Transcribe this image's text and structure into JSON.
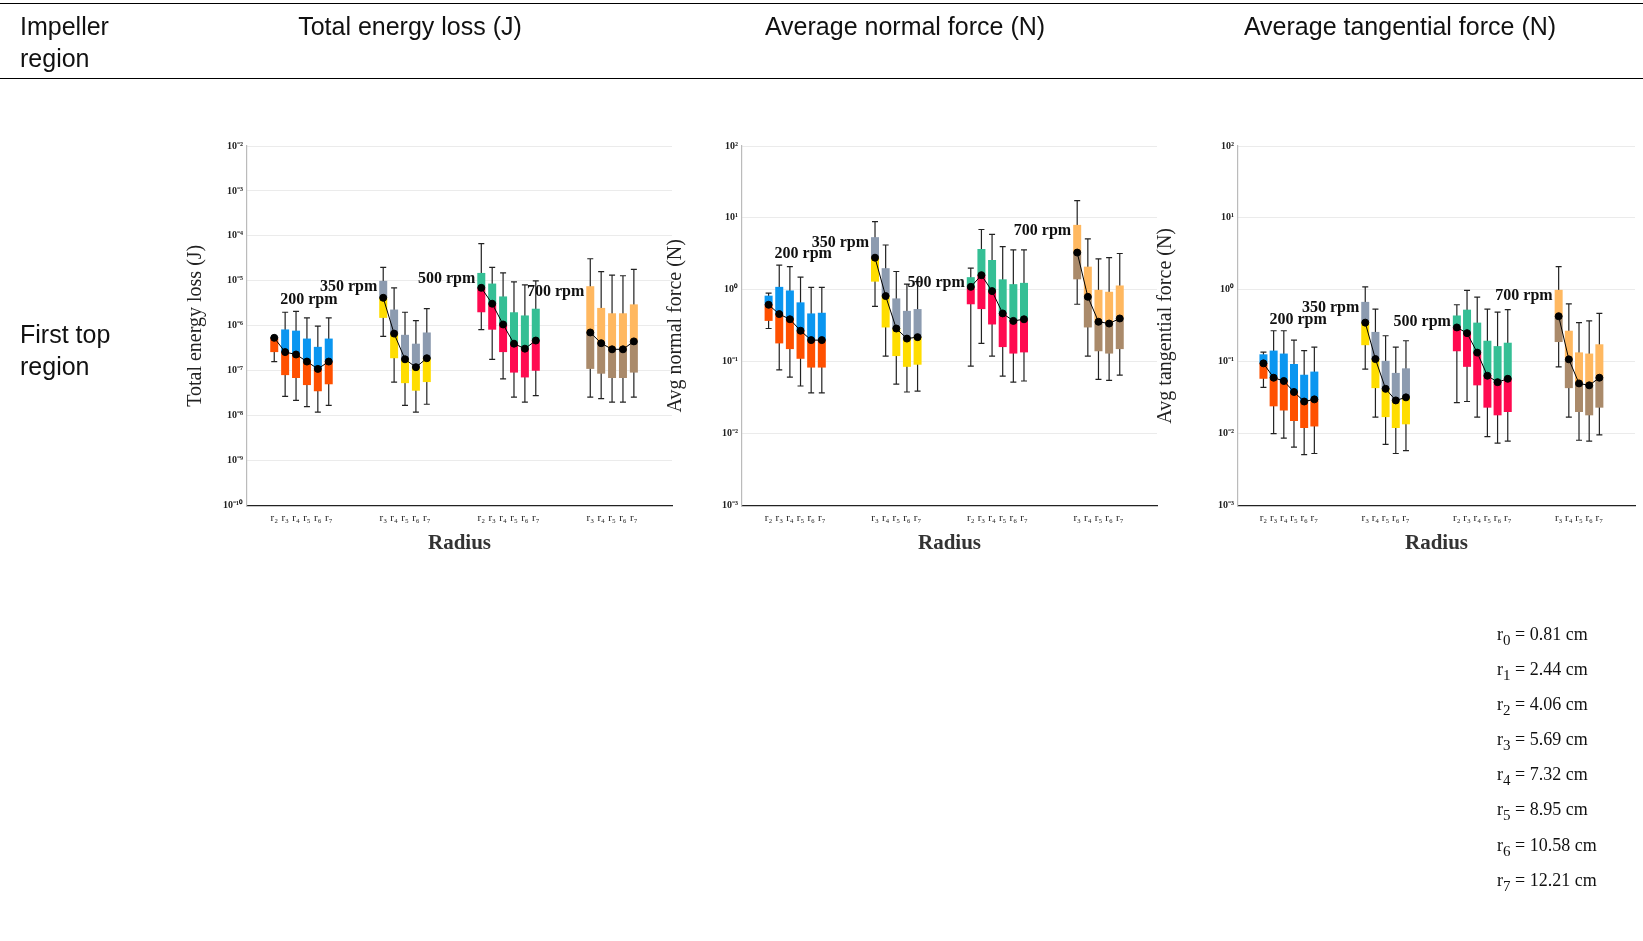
{
  "chart_data": [
    {
      "type": "box",
      "title": "Total energy loss (J)",
      "xlabel": "Radius",
      "ylabel": "Total energy loss (J)",
      "log": "y",
      "grid": "y",
      "legend": false,
      "marker": "circle",
      "line_style": "solid",
      "annotations": [
        "Impeller region",
        "First top region"
      ],
      "categories": [
        null,
        null,
        "r₂",
        "r₃",
        "r₄",
        "r₅",
        "r₆",
        "r₇",
        null,
        null,
        null,
        null,
        "r₃",
        "r₄",
        "r₅",
        "r₆",
        "r₇",
        null,
        null,
        null,
        null,
        "r₂",
        "r₃",
        "r₄",
        "r₅",
        "r₆",
        "r₇",
        null,
        null,
        null,
        null,
        "r₃",
        "r₄",
        "r₅",
        "r₆",
        "r₇",
        null,
        null,
        null
      ],
      "ylim": [
        1e-10,
        0.01
      ],
      "yticks": [
        {
          "value": 1e-10,
          "label": "10⁻¹⁰"
        },
        {
          "value": 1e-09,
          "label": "10⁻⁹"
        },
        {
          "value": 1e-08,
          "label": "10⁻⁸"
        },
        {
          "value": 1e-07,
          "label": "10⁻⁷"
        },
        {
          "value": 1e-06,
          "label": "10⁻⁶"
        },
        {
          "value": 1e-05,
          "label": "10⁻⁵"
        },
        {
          "value": 0.0001,
          "label": "10⁻⁴"
        },
        {
          "value": 0.001,
          "label": "10⁻³"
        },
        {
          "value": 0.01,
          "label": "10⁻²"
        }
      ],
      "series": [
        {
          "type": "line",
          "color": "#000000",
          "values": [
            null,
            null,
            5.4e-07,
            2.6e-07,
            2.3e-07,
            1.6e-07,
            1.1e-07,
            1.6e-07,
            null,
            null,
            null,
            null,
            4.2e-06,
            6.7e-07,
            1.8e-07,
            1.2e-07,
            1.9e-07,
            null,
            null,
            null,
            null,
            7e-06,
            3.1e-06,
            1.07e-06,
            4e-07,
            3.1e-07,
            4.7e-07,
            null,
            null,
            null,
            null,
            7.1e-07,
            4.1e-07,
            3e-07,
            3e-07,
            4.5e-07,
            null,
            null,
            null
          ]
        },
        {
          "name": "200 rpm",
          "color": "#0a96f0",
          "colors": [
            null,
            null,
            "#ff5000",
            "#ff5000",
            "#ff5000",
            "#ff5000",
            "#ff5000",
            "#ff5000",
            null,
            null,
            null,
            null,
            null,
            null,
            null,
            null,
            null,
            null,
            null,
            null,
            null,
            null,
            null,
            null,
            null,
            null,
            null,
            null,
            null,
            null,
            null,
            null,
            null,
            null,
            null,
            null,
            null,
            null,
            null
          ],
          "boxes": [
            null,
            null,
            {
              "low": 1.6e-07,
              "q1": 2.6e-07,
              "median": 5.4e-07,
              "q3": 5.6e-07,
              "high": 5.6e-07
            },
            {
              "low": 2.7e-08,
              "q1": 8e-08,
              "median": 2.6e-07,
              "q3": 8.3e-07,
              "high": 2e-06
            },
            {
              "low": 2.2e-08,
              "q1": 6.9e-08,
              "median": 2.3e-07,
              "q3": 7.8e-07,
              "high": 2.1e-06
            },
            {
              "low": 1.6e-08,
              "q1": 4.8e-08,
              "median": 1.6e-07,
              "q3": 5.2e-07,
              "high": 1.5e-06
            },
            {
              "low": 1.2e-08,
              "q1": 3.5e-08,
              "median": 1.1e-07,
              "q3": 3.4e-07,
              "high": 9.8e-07
            },
            {
              "low": 1.7e-08,
              "q1": 5e-08,
              "median": 1.6e-07,
              "q3": 5.2e-07,
              "high": 1.5e-06
            },
            null,
            null,
            null,
            null,
            null,
            null,
            null,
            null,
            null,
            null,
            null,
            null,
            null,
            null,
            null,
            null,
            null,
            null,
            null,
            null,
            null,
            null,
            null,
            null,
            null,
            null,
            null,
            null,
            null,
            null,
            null
          ]
        },
        {
          "name": "350 rpm",
          "color": "#8c9bb0",
          "colors": [
            null,
            null,
            null,
            null,
            null,
            null,
            null,
            null,
            null,
            null,
            null,
            null,
            "#ffdd00",
            "#ffdd00",
            "#ffdd00",
            "#ffdd00",
            "#ffdd00",
            null,
            null,
            null,
            null,
            null,
            null,
            null,
            null,
            null,
            null,
            null,
            null,
            null,
            null,
            null,
            null,
            null,
            null,
            null,
            null,
            null,
            null
          ],
          "boxes": [
            null,
            null,
            null,
            null,
            null,
            null,
            null,
            null,
            null,
            null,
            null,
            null,
            {
              "low": 5.8e-07,
              "q1": 1.5e-06,
              "median": 4.2e-06,
              "q3": 1e-05,
              "high": 2e-05
            },
            {
              "low": 5.6e-08,
              "q1": 1.9e-07,
              "median": 6.7e-07,
              "q3": 2.3e-06,
              "high": 7e-06
            },
            {
              "low": 1.7e-08,
              "q1": 5.3e-08,
              "median": 1.8e-07,
              "q3": 6.3e-07,
              "high": 2e-06
            },
            {
              "low": 1.2e-08,
              "q1": 3.6e-08,
              "median": 1.2e-07,
              "q3": 4e-07,
              "high": 1.3e-06
            },
            {
              "low": 1.8e-08,
              "q1": 5.6e-08,
              "median": 1.9e-07,
              "q3": 7.1e-07,
              "high": 2.4e-06
            },
            null,
            null,
            null,
            null,
            null,
            null,
            null,
            null,
            null,
            null,
            null,
            null,
            null,
            null,
            null,
            null,
            null,
            null,
            null,
            null,
            null,
            null
          ]
        },
        {
          "name": "500 rpm",
          "color": "#35bf95",
          "colors": [
            null,
            null,
            null,
            null,
            null,
            null,
            null,
            null,
            null,
            null,
            null,
            null,
            null,
            null,
            null,
            null,
            null,
            null,
            null,
            null,
            null,
            "#ff0a50",
            "#ff0a50",
            "#ff0a50",
            "#ff0a50",
            "#ff0a50",
            "#ff0a50",
            null,
            null,
            null,
            null,
            null,
            null,
            null,
            null,
            null,
            null,
            null,
            null
          ],
          "boxes": [
            null,
            null,
            null,
            null,
            null,
            null,
            null,
            null,
            null,
            null,
            null,
            null,
            null,
            null,
            null,
            null,
            null,
            null,
            null,
            null,
            null,
            {
              "low": 8.2e-07,
              "q1": 2e-06,
              "median": 7e-06,
              "q3": 1.5e-05,
              "high": 6.7e-05
            },
            {
              "low": 1.8e-07,
              "q1": 8.2e-07,
              "median": 3.1e-06,
              "q3": 8.7e-06,
              "high": 2e-05
            },
            {
              "low": 6.6e-08,
              "q1": 2.6e-07,
              "median": 1.07e-06,
              "q3": 4.5e-06,
              "high": 1.5e-05
            },
            {
              "low": 2.6e-08,
              "q1": 9.1e-08,
              "median": 4e-07,
              "q3": 2e-06,
              "high": 9.5e-06
            },
            {
              "low": 2e-08,
              "q1": 7.1e-08,
              "median": 3.1e-07,
              "q3": 1.7e-06,
              "high": 8.1e-06
            },
            {
              "low": 2.8e-08,
              "q1": 1e-07,
              "median": 4.7e-07,
              "q3": 2.4e-06,
              "high": 1e-05
            },
            null,
            null,
            null,
            null,
            null,
            null,
            null,
            null,
            null,
            null,
            null,
            null
          ]
        },
        {
          "name": "700 rpm",
          "color": "#ffb860",
          "colors": [
            null,
            null,
            null,
            null,
            null,
            null,
            null,
            null,
            null,
            null,
            null,
            null,
            null,
            null,
            null,
            null,
            null,
            null,
            null,
            null,
            null,
            null,
            null,
            null,
            null,
            null,
            null,
            null,
            null,
            null,
            null,
            "#aa8a6a",
            "#aa8a6a",
            "#aa8a6a",
            "#aa8a6a",
            "#aa8a6a",
            null,
            null,
            null
          ],
          "boxes": [
            null,
            null,
            null,
            null,
            null,
            null,
            null,
            null,
            null,
            null,
            null,
            null,
            null,
            null,
            null,
            null,
            null,
            null,
            null,
            null,
            null,
            null,
            null,
            null,
            null,
            null,
            null,
            null,
            null,
            null,
            null,
            {
              "low": 2.6e-08,
              "q1": 1.1e-07,
              "median": 7.1e-07,
              "q3": 7.6e-06,
              "high": 3.1e-05
            },
            {
              "low": 2.4e-08,
              "q1": 8.6e-08,
              "median": 4.1e-07,
              "q3": 2.5e-06,
              "high": 1.6e-05
            },
            {
              "low": 2e-08,
              "q1": 6.9e-08,
              "median": 3e-07,
              "q3": 1.9e-06,
              "high": 1.34e-05
            },
            {
              "low": 2e-08,
              "q1": 6.9e-08,
              "median": 3e-07,
              "q3": 1.9e-06,
              "high": 1.3e-05
            },
            {
              "low": 2.6e-08,
              "q1": 9.1e-08,
              "median": 4.5e-07,
              "q3": 3e-06,
              "high": 1.8e-05
            },
            null,
            null,
            null
          ]
        }
      ]
    },
    {
      "type": "box",
      "title": "Average normal force (N)",
      "xlabel": "Radius",
      "ylabel": "Avg normal force (N)",
      "log": "y",
      "grid": "y",
      "legend": false,
      "marker": "circle",
      "line_style": "solid",
      "categories": [
        null,
        null,
        "r₂",
        "r₃",
        "r₄",
        "r₅",
        "r₆",
        "r₇",
        null,
        null,
        null,
        null,
        "r₃",
        "r₄",
        "r₅",
        "r₆",
        "r₇",
        null,
        null,
        null,
        null,
        "r₂",
        "r₃",
        "r₄",
        "r₅",
        "r₆",
        "r₇",
        null,
        null,
        null,
        null,
        "r₃",
        "r₄",
        "r₅",
        "r₆",
        "r₇",
        null,
        null,
        null
      ],
      "ylim": [
        0.001,
        100
      ],
      "yticks": [
        {
          "value": 0.001,
          "label": "10⁻³"
        },
        {
          "value": 0.01,
          "label": "10⁻²"
        },
        {
          "value": 0.1,
          "label": "10⁻¹"
        },
        {
          "value": 1,
          "label": "10⁰"
        },
        {
          "value": 10,
          "label": "10¹"
        },
        {
          "value": 100,
          "label": "10²"
        }
      ],
      "series": [
        {
          "type": "line",
          "color": "#000000",
          "values": [
            null,
            null,
            0.62,
            0.46,
            0.39,
            0.27,
            0.2,
            0.2,
            null,
            null,
            null,
            null,
            2.8,
            0.82,
            0.29,
            0.21,
            0.22,
            null,
            null,
            null,
            null,
            1.1,
            1.6,
            0.96,
            0.47,
            0.37,
            0.39,
            null,
            null,
            null,
            null,
            3.3,
            0.8,
            0.36,
            0.34,
            0.4,
            null,
            null,
            null
          ]
        },
        {
          "name": "200 rpm",
          "color": "#0a96f0",
          "colors": [
            null,
            null,
            "#ff5000",
            "#ff5000",
            "#ff5000",
            "#ff5000",
            "#ff5000",
            "#ff5000",
            null,
            null,
            null,
            null,
            null,
            null,
            null,
            null,
            null,
            null,
            null,
            null,
            null,
            null,
            null,
            null,
            null,
            null,
            null,
            null,
            null,
            null,
            null,
            null,
            null,
            null,
            null,
            null,
            null,
            null,
            null
          ],
          "boxes": [
            null,
            null,
            {
              "low": 0.29,
              "q1": 0.37,
              "median": 0.62,
              "q3": 0.83,
              "high": 0.9
            },
            {
              "low": 0.077,
              "q1": 0.18,
              "median": 0.46,
              "q3": 1.1,
              "high": 2.2
            },
            {
              "low": 0.061,
              "q1": 0.15,
              "median": 0.39,
              "q3": 0.98,
              "high": 2.1
            },
            {
              "low": 0.046,
              "q1": 0.11,
              "median": 0.27,
              "q3": 0.67,
              "high": 1.5
            },
            {
              "low": 0.037,
              "q1": 0.083,
              "median": 0.2,
              "q3": 0.47,
              "high": 1.08
            },
            {
              "low": 0.037,
              "q1": 0.083,
              "median": 0.2,
              "q3": 0.48,
              "high": 1.08
            },
            null,
            null,
            null,
            null,
            null,
            null,
            null,
            null,
            null,
            null,
            null,
            null,
            null,
            null,
            null,
            null,
            null,
            null,
            null,
            null,
            null,
            null,
            null,
            null,
            null,
            null,
            null,
            null,
            null,
            null,
            null
          ]
        },
        {
          "name": "350 rpm",
          "color": "#8c9bb0",
          "colors": [
            null,
            null,
            null,
            null,
            null,
            null,
            null,
            null,
            null,
            null,
            null,
            null,
            "#ffdd00",
            "#ffdd00",
            "#ffdd00",
            "#ffdd00",
            "#ffdd00",
            null,
            null,
            null,
            null,
            null,
            null,
            null,
            null,
            null,
            null,
            null,
            null,
            null,
            null,
            null,
            null,
            null,
            null,
            null,
            null,
            null,
            null
          ],
          "boxes": [
            null,
            null,
            null,
            null,
            null,
            null,
            null,
            null,
            null,
            null,
            null,
            null,
            {
              "low": 0.59,
              "q1": 1.3,
              "median": 2.8,
              "q3": 5.4,
              "high": 8.9
            },
            {
              "low": 0.12,
              "q1": 0.3,
              "median": 0.82,
              "q3": 2,
              "high": 4.2
            },
            {
              "low": 0.049,
              "q1": 0.12,
              "median": 0.29,
              "q3": 0.76,
              "high": 1.8
            },
            {
              "low": 0.038,
              "q1": 0.085,
              "median": 0.21,
              "q3": 0.51,
              "high": 1.2
            },
            {
              "low": 0.039,
              "q1": 0.091,
              "median": 0.22,
              "q3": 0.54,
              "high": 1.3
            },
            null,
            null,
            null,
            null,
            null,
            null,
            null,
            null,
            null,
            null,
            null,
            null,
            null,
            null,
            null,
            null,
            null,
            null,
            null,
            null,
            null,
            null
          ]
        },
        {
          "name": "500 rpm",
          "color": "#35bf95",
          "colors": [
            null,
            null,
            null,
            null,
            null,
            null,
            null,
            null,
            null,
            null,
            null,
            null,
            null,
            null,
            null,
            null,
            null,
            null,
            null,
            null,
            null,
            "#ff0a50",
            "#ff0a50",
            "#ff0a50",
            "#ff0a50",
            "#ff0a50",
            "#ff0a50",
            null,
            null,
            null,
            null,
            null,
            null,
            null,
            null,
            null,
            null,
            null,
            null
          ],
          "boxes": [
            null,
            null,
            null,
            null,
            null,
            null,
            null,
            null,
            null,
            null,
            null,
            null,
            null,
            null,
            null,
            null,
            null,
            null,
            null,
            null,
            null,
            {
              "low": 0.087,
              "q1": 0.63,
              "median": 1.1,
              "q3": 1.5,
              "high": 2
            },
            {
              "low": 0.18,
              "q1": 0.54,
              "median": 1.6,
              "q3": 3.7,
              "high": 6.9
            },
            {
              "low": 0.12,
              "q1": 0.33,
              "median": 0.96,
              "q3": 2.6,
              "high": 5.9
            },
            {
              "low": 0.063,
              "q1": 0.16,
              "median": 0.47,
              "q3": 1.4,
              "high": 4
            },
            {
              "low": 0.052,
              "q1": 0.13,
              "median": 0.37,
              "q3": 1.2,
              "high": 3.6
            },
            {
              "low": 0.054,
              "q1": 0.135,
              "median": 0.39,
              "q3": 1.25,
              "high": 3.6
            },
            null,
            null,
            null,
            null,
            null,
            null,
            null,
            null,
            null,
            null,
            null,
            null
          ]
        },
        {
          "name": "700 rpm",
          "color": "#ffb860",
          "colors": [
            null,
            null,
            null,
            null,
            null,
            null,
            null,
            null,
            null,
            null,
            null,
            null,
            null,
            null,
            null,
            null,
            null,
            null,
            null,
            null,
            null,
            null,
            null,
            null,
            null,
            null,
            null,
            null,
            null,
            null,
            null,
            "#aa8a6a",
            "#aa8a6a",
            "#aa8a6a",
            "#aa8a6a",
            "#aa8a6a",
            null,
            null,
            null
          ],
          "boxes": [
            null,
            null,
            null,
            null,
            null,
            null,
            null,
            null,
            null,
            null,
            null,
            null,
            null,
            null,
            null,
            null,
            null,
            null,
            null,
            null,
            null,
            null,
            null,
            null,
            null,
            null,
            null,
            null,
            null,
            null,
            null,
            {
              "low": 0.63,
              "q1": 1.4,
              "median": 3.3,
              "q3": 8,
              "high": 17.4
            },
            {
              "low": 0.12,
              "q1": 0.3,
              "median": 0.8,
              "q3": 2.1,
              "high": 5.1
            },
            {
              "low": 0.057,
              "q1": 0.14,
              "median": 0.36,
              "q3": 1,
              "high": 2.7
            },
            {
              "low": 0.055,
              "q1": 0.13,
              "median": 0.34,
              "q3": 0.94,
              "high": 2.8
            },
            {
              "low": 0.065,
              "q1": 0.15,
              "median": 0.4,
              "q3": 1.15,
              "high": 3.2
            },
            null,
            null,
            null
          ]
        }
      ]
    },
    {
      "type": "box",
      "title": "Average tangential force (N)",
      "xlabel": "Radius",
      "ylabel": "Avg tangential force (N)",
      "log": "y",
      "grid": "y",
      "legend": false,
      "marker": "circle",
      "line_style": "solid",
      "annotations": [
        "r$_{0}$ = 0.81 cm",
        "r$_{1}$ = 2.44 cm",
        "r$_{2}$ = 4.06 cm",
        "r$_{3}$ = 5.69 cm",
        "r$_{4}$ = 7.32 cm",
        "r$_{5}$ = 8.95 cm",
        "r$_{6}$ = 10.58 cm",
        "r$_{7}$ = 12.21 cm"
      ],
      "categories": [
        null,
        null,
        "r₂",
        "r₃",
        "r₄",
        "r₅",
        "r₆",
        "r₇",
        null,
        null,
        null,
        null,
        "r₃",
        "r₄",
        "r₅",
        "r₆",
        "r₇",
        null,
        null,
        null,
        null,
        "r₂",
        "r₃",
        "r₄",
        "r₅",
        "r₆",
        "r₇",
        null,
        null,
        null,
        null,
        "r₃",
        "r₄",
        "r₅",
        "r₆",
        "r₇",
        null,
        null,
        null
      ],
      "ylim": [
        0.001,
        100
      ],
      "yticks": [
        {
          "value": 0.001,
          "label": "10⁻³"
        },
        {
          "value": 0.01,
          "label": "10⁻²"
        },
        {
          "value": 0.1,
          "label": "10⁻¹"
        },
        {
          "value": 1,
          "label": "10⁰"
        },
        {
          "value": 10,
          "label": "10¹"
        },
        {
          "value": 100,
          "label": "10²"
        }
      ],
      "series": [
        {
          "type": "line",
          "color": "#000000",
          "values": [
            null,
            null,
            0.095,
            0.06,
            0.054,
            0.038,
            0.028,
            0.03,
            null,
            null,
            null,
            null,
            0.35,
            0.109,
            0.042,
            0.029,
            0.032,
            null,
            null,
            null,
            null,
            0.3,
            0.25,
            0.134,
            0.064,
            0.052,
            0.058,
            null,
            null,
            null,
            null,
            0.43,
            0.108,
            0.05,
            0.047,
            0.06,
            null,
            null,
            null
          ]
        },
        {
          "name": "200 rpm",
          "color": "#0a96f0",
          "colors": [
            null,
            null,
            "#ff5000",
            "#ff5000",
            "#ff5000",
            "#ff5000",
            "#ff5000",
            "#ff5000",
            null,
            null,
            null,
            null,
            null,
            null,
            null,
            null,
            null,
            null,
            null,
            null,
            null,
            null,
            null,
            null,
            null,
            null,
            null,
            null,
            null,
            null,
            null,
            null,
            null,
            null,
            null,
            null,
            null,
            null,
            null
          ],
          "boxes": [
            null,
            null,
            {
              "low": 0.044,
              "q1": 0.058,
              "median": 0.095,
              "q3": 0.127,
              "high": 0.136
            },
            {
              "low": 0.01,
              "q1": 0.024,
              "median": 0.06,
              "q3": 0.143,
              "high": 0.27
            },
            {
              "low": 0.0087,
              "q1": 0.021,
              "median": 0.054,
              "q3": 0.13,
              "high": 0.27
            },
            {
              "low": 0.0065,
              "q1": 0.015,
              "median": 0.038,
              "q3": 0.093,
              "high": 0.2
            },
            {
              "low": 0.0051,
              "q1": 0.012,
              "median": 0.028,
              "q3": 0.066,
              "high": 0.143
            },
            {
              "low": 0.0053,
              "q1": 0.0126,
              "median": 0.03,
              "q3": 0.073,
              "high": 0.16
            },
            null,
            null,
            null,
            null,
            null,
            null,
            null,
            null,
            null,
            null,
            null,
            null,
            null,
            null,
            null,
            null,
            null,
            null,
            null,
            null,
            null,
            null,
            null,
            null,
            null,
            null,
            null,
            null,
            null,
            null,
            null
          ]
        },
        {
          "name": "350 rpm",
          "color": "#8c9bb0",
          "colors": [
            null,
            null,
            null,
            null,
            null,
            null,
            null,
            null,
            null,
            null,
            null,
            null,
            "#ffdd00",
            "#ffdd00",
            "#ffdd00",
            "#ffdd00",
            "#ffdd00",
            null,
            null,
            null,
            null,
            null,
            null,
            null,
            null,
            null,
            null,
            null,
            null,
            null,
            null,
            null,
            null,
            null,
            null,
            null,
            null,
            null,
            null
          ],
          "boxes": [
            null,
            null,
            null,
            null,
            null,
            null,
            null,
            null,
            null,
            null,
            null,
            null,
            {
              "low": 0.079,
              "q1": 0.17,
              "median": 0.35,
              "q3": 0.68,
              "high": 1.1
            },
            {
              "low": 0.017,
              "q1": 0.043,
              "median": 0.109,
              "q3": 0.26,
              "high": 0.54
            },
            {
              "low": 0.0071,
              "q1": 0.017,
              "median": 0.042,
              "q3": 0.103,
              "high": 0.23
            },
            {
              "low": 0.0053,
              "q1": 0.012,
              "median": 0.029,
              "q3": 0.07,
              "high": 0.16
            },
            {
              "low": 0.0058,
              "q1": 0.0135,
              "median": 0.032,
              "q3": 0.081,
              "high": 0.196
            },
            null,
            null,
            null,
            null,
            null,
            null,
            null,
            null,
            null,
            null,
            null,
            null,
            null,
            null,
            null,
            null,
            null,
            null,
            null,
            null,
            null,
            null
          ]
        },
        {
          "name": "500 rpm",
          "color": "#35bf95",
          "colors": [
            null,
            null,
            null,
            null,
            null,
            null,
            null,
            null,
            null,
            null,
            null,
            null,
            null,
            null,
            null,
            null,
            null,
            null,
            null,
            null,
            null,
            "#ff0a50",
            "#ff0a50",
            "#ff0a50",
            "#ff0a50",
            "#ff0a50",
            "#ff0a50",
            null,
            null,
            null,
            null,
            null,
            null,
            null,
            null,
            null,
            null,
            null,
            null
          ],
          "boxes": [
            null,
            null,
            null,
            null,
            null,
            null,
            null,
            null,
            null,
            null,
            null,
            null,
            null,
            null,
            null,
            null,
            null,
            null,
            null,
            null,
            null,
            {
              "low": 0.027,
              "q1": 0.14,
              "median": 0.3,
              "q3": 0.44,
              "high": 0.62
            },
            {
              "low": 0.028,
              "q1": 0.085,
              "median": 0.25,
              "q3": 0.53,
              "high": 0.98
            },
            {
              "low": 0.017,
              "q1": 0.047,
              "median": 0.134,
              "q3": 0.35,
              "high": 0.79
            },
            {
              "low": 0.0091,
              "q1": 0.023,
              "median": 0.064,
              "q3": 0.196,
              "high": 0.54
            },
            {
              "low": 0.0074,
              "q1": 0.018,
              "median": 0.052,
              "q3": 0.165,
              "high": 0.49
            },
            {
              "low": 0.0079,
              "q1": 0.02,
              "median": 0.058,
              "q3": 0.184,
              "high": 0.53
            },
            null,
            null,
            null,
            null,
            null,
            null,
            null,
            null,
            null,
            null,
            null,
            null
          ]
        },
        {
          "name": "700 rpm",
          "color": "#ffb860",
          "colors": [
            null,
            null,
            null,
            null,
            null,
            null,
            null,
            null,
            null,
            null,
            null,
            null,
            null,
            null,
            null,
            null,
            null,
            null,
            null,
            null,
            null,
            null,
            null,
            null,
            null,
            null,
            null,
            null,
            null,
            null,
            null,
            "#aa8a6a",
            "#aa8a6a",
            "#aa8a6a",
            "#aa8a6a",
            "#aa8a6a",
            null,
            null,
            null
          ],
          "boxes": [
            null,
            null,
            null,
            null,
            null,
            null,
            null,
            null,
            null,
            null,
            null,
            null,
            null,
            null,
            null,
            null,
            null,
            null,
            null,
            null,
            null,
            null,
            null,
            null,
            null,
            null,
            null,
            null,
            null,
            null,
            null,
            {
              "low": 0.085,
              "q1": 0.188,
              "median": 0.43,
              "q3": 1,
              "high": 2.1
            },
            {
              "low": 0.017,
              "q1": 0.043,
              "median": 0.108,
              "q3": 0.27,
              "high": 0.64
            },
            {
              "low": 0.0081,
              "q1": 0.02,
              "median": 0.05,
              "q3": 0.135,
              "high": 0.35
            },
            {
              "low": 0.0079,
              "q1": 0.018,
              "median": 0.047,
              "q3": 0.13,
              "high": 0.37
            },
            {
              "low": 0.0096,
              "q1": 0.023,
              "median": 0.06,
              "q3": 0.175,
              "high": 0.47
            },
            null,
            null,
            null
          ]
        }
      ]
    }
  ]
}
